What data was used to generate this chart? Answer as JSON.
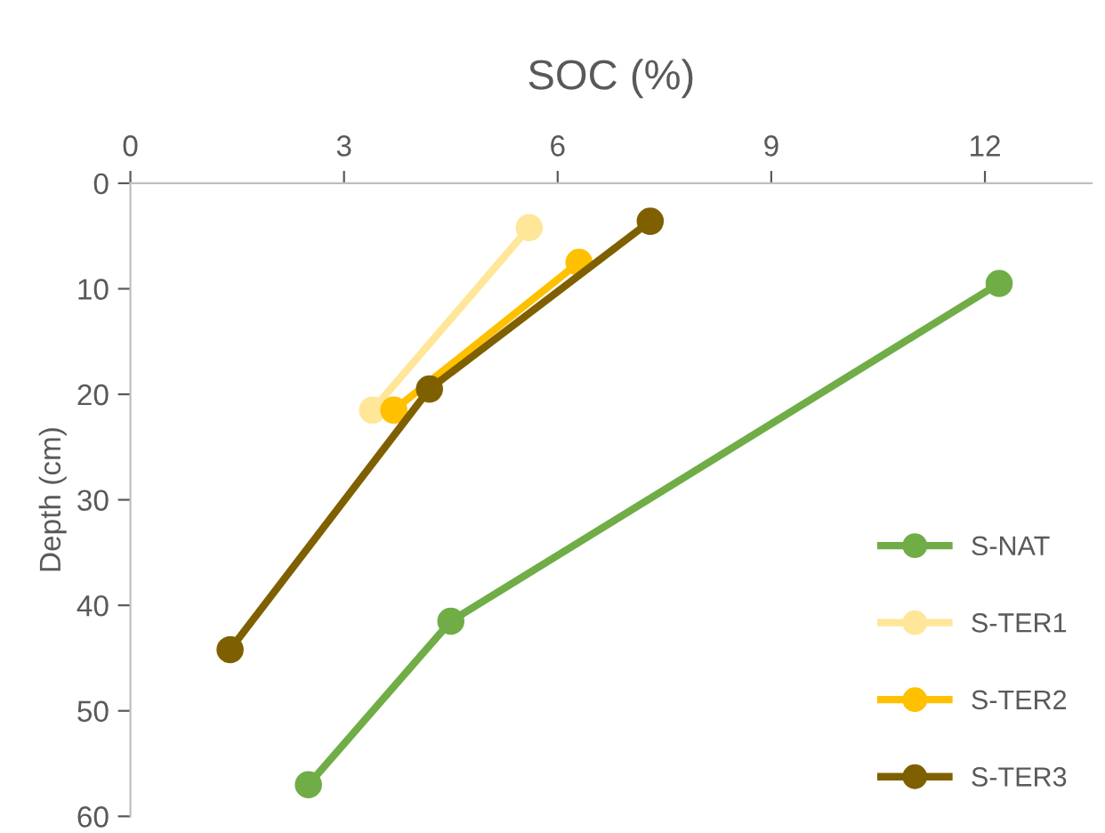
{
  "chart_data": {
    "type": "line",
    "title": "SOC (%)",
    "ylabel": "Depth (cm)",
    "xlim": [
      0,
      13.5
    ],
    "xticks": [
      0,
      3,
      6,
      9,
      12
    ],
    "ylim": [
      60,
      0
    ],
    "yticks": [
      0,
      10,
      20,
      30,
      40,
      50,
      60
    ],
    "grid": false,
    "legend": "bottom right",
    "marker": "circle",
    "line_style": "solid",
    "series": [
      {
        "name": "S-NAT",
        "color": "#70ad47",
        "x": [
          12.2,
          4.5,
          2.5
        ],
        "values": [
          9.5,
          41.5,
          57
        ]
      },
      {
        "name": "S-TER1",
        "color": "#ffe699",
        "x": [
          5.6,
          3.4
        ],
        "values": [
          4.2,
          21.5
        ]
      },
      {
        "name": "S-TER2",
        "color": "#ffc000",
        "x": [
          6.3,
          3.7
        ],
        "values": [
          7.5,
          21.5
        ]
      },
      {
        "name": "S-TER3",
        "color": "#7f6000",
        "x": [
          7.3,
          4.2,
          1.4
        ],
        "values": [
          3.6,
          19.5,
          44.2
        ]
      }
    ]
  }
}
